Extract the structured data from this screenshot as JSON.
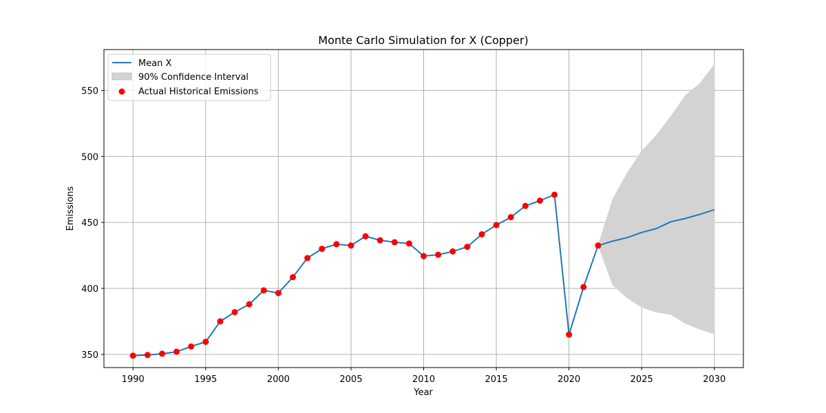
{
  "chart_data": {
    "type": "line",
    "title": "Monte Carlo Simulation for X (Copper)",
    "xlabel": "Year",
    "ylabel": "Emissions",
    "xlim": [
      1988,
      2032
    ],
    "ylim": [
      340,
      581
    ],
    "xticks": [
      1990,
      1995,
      2000,
      2005,
      2010,
      2015,
      2020,
      2025,
      2030
    ],
    "yticks": [
      350,
      400,
      450,
      500,
      550
    ],
    "grid": true,
    "legend_position": "top-left",
    "series": [
      {
        "name": "Mean X",
        "kind": "line",
        "color": "#1f77b4",
        "x": [
          1990,
          1991,
          1992,
          1993,
          1994,
          1995,
          1996,
          1997,
          1998,
          1999,
          2000,
          2001,
          2002,
          2003,
          2004,
          2005,
          2006,
          2007,
          2008,
          2009,
          2010,
          2011,
          2012,
          2013,
          2014,
          2015,
          2016,
          2017,
          2018,
          2019,
          2020,
          2021,
          2022,
          2023,
          2024,
          2025,
          2026,
          2027,
          2028,
          2029,
          2030
        ],
        "y": [
          349,
          349.5,
          350.5,
          352,
          356,
          359.5,
          375,
          382,
          388,
          398.5,
          396.5,
          408.5,
          423,
          430,
          433.5,
          432.5,
          439.5,
          436.5,
          435,
          434,
          424.5,
          425.5,
          428,
          431.5,
          441,
          448,
          454,
          462.5,
          466.5,
          471,
          365,
          401,
          432.5,
          435.8,
          438.5,
          442.4,
          445.3,
          450.5,
          453,
          456.1,
          459.6
        ]
      },
      {
        "name": "90% Confidence Interval",
        "kind": "band",
        "color": "#d3d3d3",
        "x": [
          2022,
          2023,
          2024,
          2025,
          2026,
          2027,
          2028,
          2029,
          2030
        ],
        "lower": [
          432.5,
          402.5,
          392.8,
          385.6,
          382,
          380.2,
          373.4,
          369,
          365.3
        ],
        "upper": [
          432.5,
          467.7,
          487.5,
          504.1,
          516,
          530.4,
          546.3,
          555.3,
          570
        ]
      },
      {
        "name": "Actual Historical Emissions",
        "kind": "scatter",
        "color": "#ff0000",
        "x": [
          1990,
          1991,
          1992,
          1993,
          1994,
          1995,
          1996,
          1997,
          1998,
          1999,
          2000,
          2001,
          2002,
          2003,
          2004,
          2005,
          2006,
          2007,
          2008,
          2009,
          2010,
          2011,
          2012,
          2013,
          2014,
          2015,
          2016,
          2017,
          2018,
          2019,
          2020,
          2021,
          2022
        ],
        "y": [
          349,
          349.5,
          350.5,
          352,
          356,
          359.5,
          375,
          382,
          388,
          398.5,
          396.5,
          408.5,
          423,
          430,
          433.5,
          432.5,
          439.5,
          436.5,
          435,
          434,
          424.5,
          425.5,
          428,
          431.5,
          441,
          448,
          454,
          462.5,
          466.5,
          471,
          365,
          401,
          432.5
        ]
      }
    ]
  }
}
